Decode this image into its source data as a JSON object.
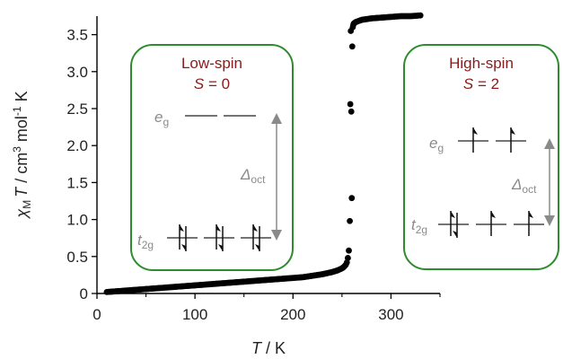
{
  "colors": {
    "data": "#000000",
    "axis": "#000000",
    "panel_border": "#2e8b2e",
    "panel_title": "#8b1a1a",
    "orbital_gray": "#8a8a8a"
  },
  "chart_data": {
    "type": "scatter",
    "xlabel_symbol": "T",
    "xlabel_unit": " / K",
    "ylabel_parts": [
      "χ",
      "M",
      "T",
      " / cm",
      "3",
      " mol",
      "-1",
      " K"
    ],
    "xlim": [
      0,
      350
    ],
    "ylim": [
      0,
      3.75
    ],
    "xticks": [
      0,
      100,
      200,
      300
    ],
    "yticks": [
      0,
      0.5,
      1.0,
      1.5,
      2.0,
      2.5,
      3.0,
      3.5
    ],
    "ytick_labels": [
      "0",
      "0.5",
      "1.0",
      "1.5",
      "2.0",
      "2.5",
      "3.0",
      "3.5"
    ],
    "grid": false,
    "series": [
      {
        "x": [
          10,
          20,
          30,
          40,
          50,
          60,
          70,
          80,
          90,
          100,
          110,
          120,
          130,
          140,
          150,
          160,
          170,
          180,
          190,
          200,
          210,
          220,
          230,
          240,
          245,
          250,
          252,
          254,
          255,
          256,
          257,
          258,
          258.5,
          259,
          259.5,
          260,
          260.5,
          261,
          261.5,
          262,
          263,
          264,
          266,
          270,
          280,
          290,
          300,
          310,
          320,
          330
        ],
        "y": [
          0.02,
          0.03,
          0.04,
          0.05,
          0.06,
          0.07,
          0.08,
          0.09,
          0.1,
          0.11,
          0.12,
          0.13,
          0.14,
          0.15,
          0.16,
          0.17,
          0.18,
          0.19,
          0.2,
          0.21,
          0.22,
          0.24,
          0.26,
          0.29,
          0.31,
          0.34,
          0.36,
          0.39,
          0.42,
          0.48,
          0.58,
          0.98,
          2.56,
          3.55,
          2.46,
          1.29,
          3.34,
          3.6,
          3.63,
          3.65,
          3.66,
          3.67,
          3.68,
          3.7,
          3.72,
          3.73,
          3.74,
          3.75,
          3.75,
          3.76
        ]
      }
    ],
    "annotations": {
      "low_spin": {
        "title": "Low-spin",
        "spin_symbol": "S",
        "spin_value": " = 0",
        "eg_label": "e",
        "eg_sub": "g",
        "t2g_label": "t",
        "t2g_sub": "2g",
        "delta_label": "Δ",
        "delta_sub": "oct"
      },
      "high_spin": {
        "title": "High-spin",
        "spin_symbol": "S",
        "spin_value": " = 2",
        "eg_label": "e",
        "eg_sub": "g",
        "t2g_label": "t",
        "t2g_sub": "2g",
        "delta_label": "Δ",
        "delta_sub": "oct"
      }
    }
  }
}
